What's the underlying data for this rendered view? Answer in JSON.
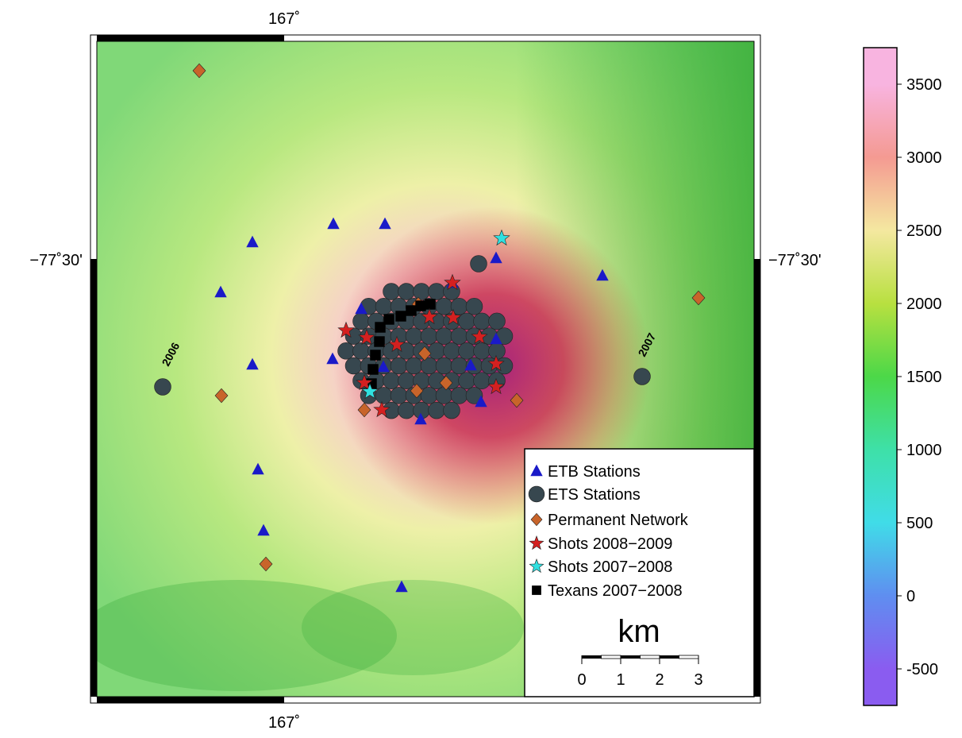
{
  "map": {
    "frame_labels": {
      "top": "167˚",
      "bottom": "167˚",
      "left": "−77˚30'",
      "right": "−77˚30'"
    },
    "annotations": [
      "2006",
      "2007"
    ],
    "legend": [
      {
        "name": "ETB Stations",
        "color": "#1a1ac8",
        "marker": "triangle"
      },
      {
        "name": "ETS Stations",
        "color": "#37474f",
        "marker": "circle"
      },
      {
        "name": "Permanent Network",
        "color": "#c8642a",
        "marker": "diamond"
      },
      {
        "name": "Shots 2008−2009",
        "color": "#d42020",
        "marker": "star"
      },
      {
        "name": "Shots 2007−2008",
        "color": "#30e0e0",
        "marker": "star"
      },
      {
        "name": "Texans 2007−2008",
        "color": "#000000",
        "marker": "square"
      }
    ],
    "scale_bar": {
      "unit": "km",
      "ticks": [
        0,
        1,
        2,
        3
      ]
    },
    "colorbar": {
      "lim": [
        -750,
        3750
      ],
      "ticks": [
        -500,
        0,
        500,
        1000,
        1500,
        2000,
        2500,
        3000,
        3500
      ]
    }
  }
}
